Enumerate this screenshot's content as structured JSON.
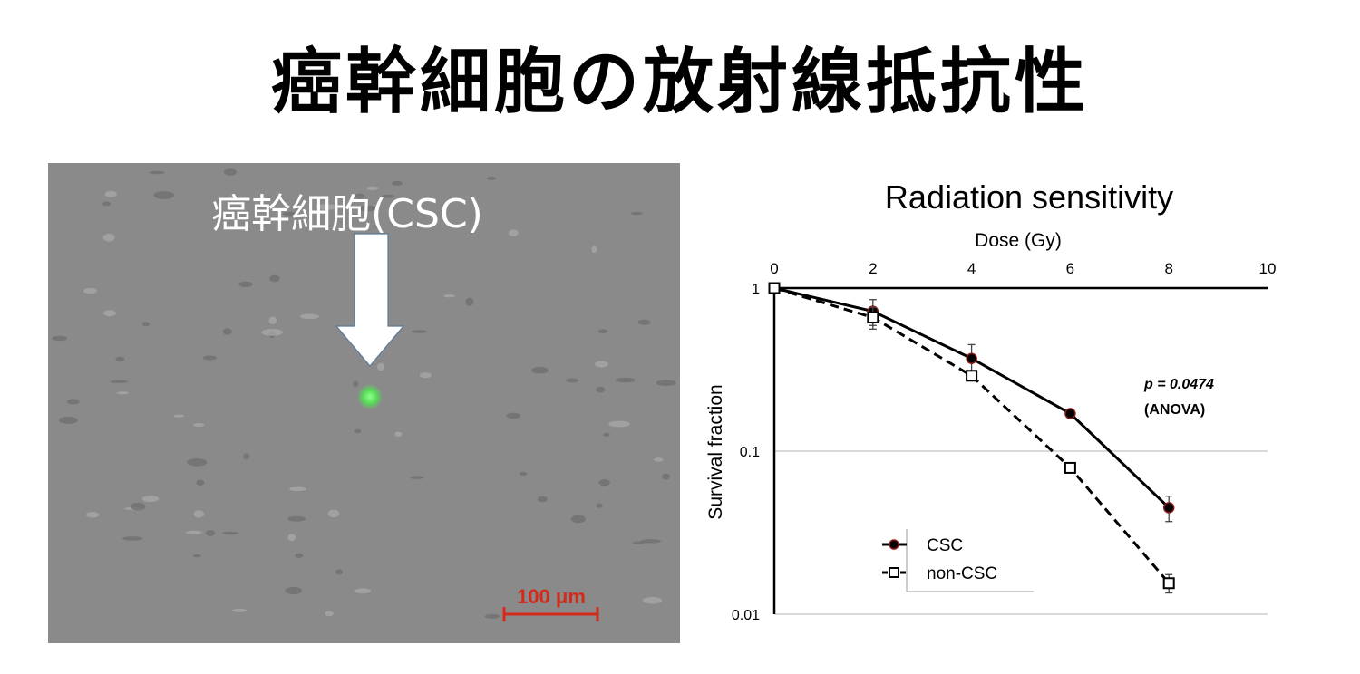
{
  "slide": {
    "title": "癌幹細胞の放射線抵抗性"
  },
  "micrograph": {
    "label": "癌幹細胞(CSC)",
    "scale_bar": "100 μm",
    "colors": {
      "background": "#8a8a8a",
      "highlight_cell": "#57d957",
      "scale": "#d42a1a"
    }
  },
  "chart_data": {
    "type": "line",
    "title": "Radiation sensitivity",
    "xlabel": "Dose (Gy)",
    "ylabel": "Survival fraction",
    "x_axis_position": "top",
    "yscale": "log",
    "xlim": [
      0,
      10
    ],
    "ylim": [
      0.01,
      1
    ],
    "x_ticks": [
      "0",
      "2",
      "4",
      "6",
      "8",
      "10"
    ],
    "y_ticks": [
      {
        "label": "1",
        "value": 1
      },
      {
        "label": "0.1",
        "value": 0.1
      },
      {
        "label": "0.01",
        "value": 0.01
      }
    ],
    "grid": "horizontal",
    "series": [
      {
        "name": "CSC",
        "style": "solid",
        "marker": "filled-circle",
        "color": "#000000",
        "marker_edge": "#8b1a1a",
        "x": [
          0,
          2,
          4,
          6,
          8
        ],
        "y": [
          1,
          0.72,
          0.37,
          0.17,
          0.045
        ],
        "err": [
          0,
          0.13,
          0.08,
          0,
          0.008
        ]
      },
      {
        "name": "non-CSC",
        "style": "dashed",
        "marker": "open-square",
        "color": "#000000",
        "x": [
          0,
          2,
          4,
          6,
          8
        ],
        "y": [
          1,
          0.66,
          0.29,
          0.079,
          0.0155
        ],
        "err": [
          0,
          0.1,
          0,
          0,
          0.002
        ]
      }
    ],
    "annotation": {
      "p_value": "p = 0.0474",
      "test": "(ANOVA)"
    },
    "legend_position": "bottom-left"
  }
}
